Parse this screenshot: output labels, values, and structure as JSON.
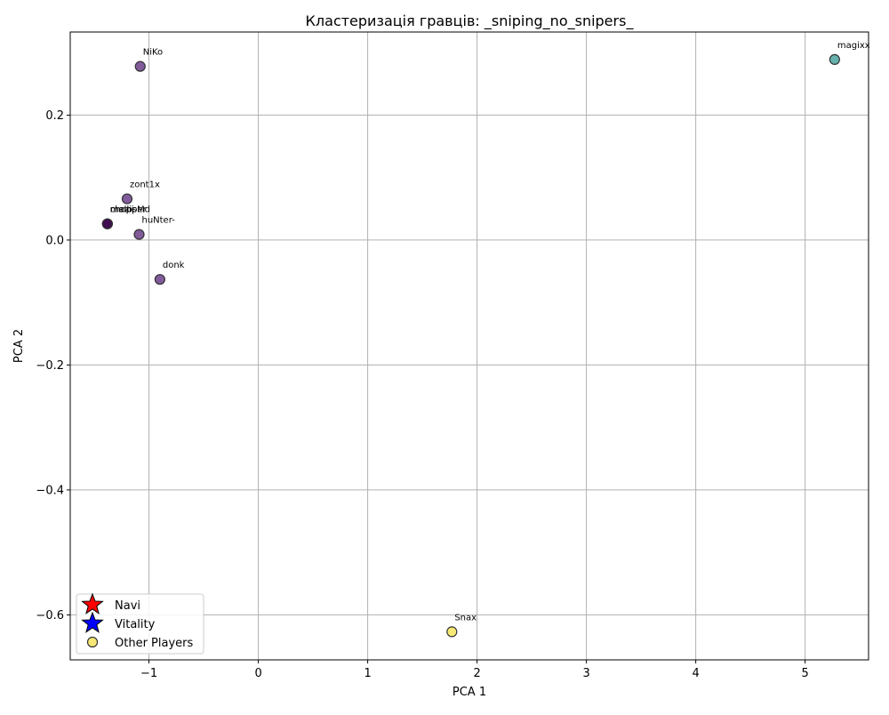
{
  "chart_data": {
    "type": "scatter",
    "title": "Кластеризація гравців: _sniping_no_snipers_",
    "xlabel": "PCA 1",
    "ylabel": "PCA 2",
    "xlim": [
      -1.72,
      5.58
    ],
    "ylim": [
      -0.672,
      0.333
    ],
    "xticks": [
      -1,
      0,
      1,
      2,
      3,
      4,
      5
    ],
    "xtick_labels": [
      "−1",
      "0",
      "1",
      "2",
      "3",
      "4",
      "5"
    ],
    "yticks": [
      -0.6,
      -0.4,
      -0.2,
      0.0,
      0.2
    ],
    "ytick_labels": [
      "−0.6",
      "−0.4",
      "−0.2",
      "0.0",
      "0.2"
    ],
    "grid": true,
    "points": [
      {
        "label": "NiKo",
        "x": -1.08,
        "y": 0.278,
        "color": "#5d2d7e"
      },
      {
        "label": "zont1x",
        "x": -1.2,
        "y": 0.066,
        "color": "#5d2d7e"
      },
      {
        "label": "mezii",
        "x": -1.38,
        "y": 0.026,
        "color": "#3f0a4f"
      },
      {
        "label": "chopper",
        "x": -1.38,
        "y": 0.026,
        "color": "#3f0a4f"
      },
      {
        "label": "malbsMd",
        "x": -1.38,
        "y": 0.026,
        "color": "#3f0a4f"
      },
      {
        "label": "huNter-",
        "x": -1.09,
        "y": 0.009,
        "color": "#5d2d7e"
      },
      {
        "label": "donk",
        "x": -0.9,
        "y": -0.063,
        "color": "#5d2d7e"
      },
      {
        "label": "magixx",
        "x": 5.27,
        "y": 0.289,
        "color": "#3a9b96"
      },
      {
        "label": "Snax",
        "x": 1.77,
        "y": -0.627,
        "color": "#f6e34f"
      }
    ],
    "legend": {
      "position": "lower-left",
      "entries": [
        {
          "label": "Navi",
          "marker": "star",
          "color": "#ff0000"
        },
        {
          "label": "Vitality",
          "marker": "star",
          "color": "#0000ff"
        },
        {
          "label": "Other Players",
          "marker": "circle",
          "color": "#f6e34f"
        }
      ]
    }
  }
}
